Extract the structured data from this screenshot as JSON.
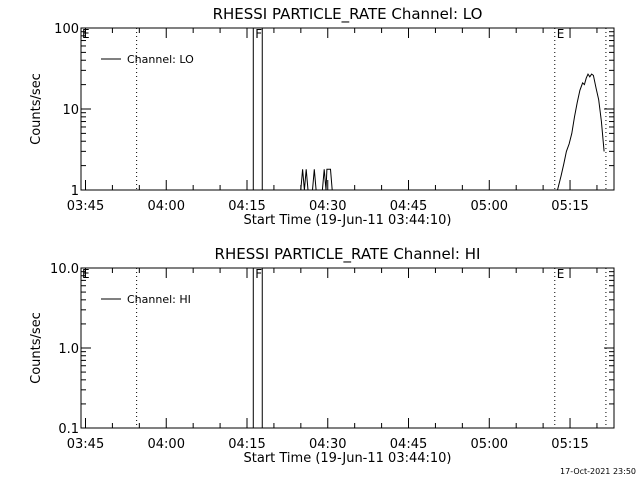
{
  "footer": {
    "timestamp": "17-Oct-2021 23:50"
  },
  "chart_data": [
    {
      "type": "line",
      "title": "RHESSI PARTICLE_RATE Channel: LO",
      "xlabel": "Start Time (19-Jun-11 03:44:10)",
      "ylabel": "Counts/sec",
      "yscale": "log",
      "xlim": [
        "03:44:10",
        "05:23:10"
      ],
      "ylim": [
        1,
        100
      ],
      "xticks": [
        "03:45",
        "04:00",
        "04:15",
        "04:30",
        "04:45",
        "05:00",
        "05:15"
      ],
      "yticks": [
        "1",
        "10",
        "100"
      ],
      "legend": {
        "placement": "top-left",
        "entries": [
          "Channel: LO"
        ]
      },
      "markers": [
        {
          "time": "03:54:30",
          "label": "",
          "style": "dotted"
        },
        {
          "time": "04:16:10",
          "label": "F",
          "style": "solid"
        },
        {
          "time": "04:17:50",
          "label": "",
          "style": "solid"
        },
        {
          "time": "05:12:10",
          "label": "E",
          "style": "dotted"
        },
        {
          "time": "05:21:40",
          "label": "",
          "style": "dotted"
        }
      ],
      "corner_labels": [
        "E"
      ],
      "series": [
        {
          "x": [
            "04:25:00",
            "04:25:20",
            "04:25:40",
            "04:26:00",
            "04:26:20",
            "04:26:40",
            "04:27:10",
            "04:27:30",
            "04:27:50",
            "04:28:10",
            "04:28:40",
            "04:29:00",
            "04:29:20",
            "04:29:40",
            "04:29:50",
            "04:30:10",
            "04:30:30",
            "04:30:50",
            "04:31:10",
            "04:31:40"
          ],
          "y": [
            1,
            1.8,
            1,
            1.8,
            1,
            1,
            1,
            1.8,
            1,
            1,
            1,
            1,
            1.8,
            1,
            1.8,
            1.8,
            1.8,
            1,
            1,
            1
          ]
        },
        {
          "x": [
            "05:12:40",
            "05:13:20",
            "05:13:50",
            "05:14:20",
            "05:14:50",
            "05:15:20",
            "05:15:50",
            "05:16:20",
            "05:16:50",
            "05:17:20",
            "05:17:40",
            "05:18:00",
            "05:18:20",
            "05:18:40",
            "05:19:00",
            "05:19:20",
            "05:19:50",
            "05:20:20",
            "05:20:50",
            "05:21:20"
          ],
          "y": [
            1,
            1.5,
            2.1,
            3,
            3.7,
            5,
            8,
            12,
            17,
            21,
            20,
            24,
            27,
            25,
            27,
            26,
            18,
            13,
            7,
            3
          ]
        }
      ]
    },
    {
      "type": "line",
      "title": "RHESSI PARTICLE_RATE Channel: HI",
      "xlabel": "Start Time (19-Jun-11 03:44:10)",
      "ylabel": "Counts/sec",
      "yscale": "log",
      "xlim": [
        "03:44:10",
        "05:23:10"
      ],
      "ylim": [
        0.1,
        10
      ],
      "xticks": [
        "03:45",
        "04:00",
        "04:15",
        "04:30",
        "04:45",
        "05:00",
        "05:15"
      ],
      "yticks": [
        "0.1",
        "1.0",
        "10.0"
      ],
      "legend": {
        "placement": "top-left",
        "entries": [
          "Channel: HI"
        ]
      },
      "markers": [
        {
          "time": "03:54:30",
          "label": "",
          "style": "dotted"
        },
        {
          "time": "04:16:10",
          "label": "F",
          "style": "solid"
        },
        {
          "time": "04:17:50",
          "label": "",
          "style": "solid"
        },
        {
          "time": "05:12:10",
          "label": "E",
          "style": "dotted"
        },
        {
          "time": "05:21:40",
          "label": "",
          "style": "dotted"
        }
      ],
      "corner_labels": [
        "E"
      ],
      "series": []
    }
  ]
}
